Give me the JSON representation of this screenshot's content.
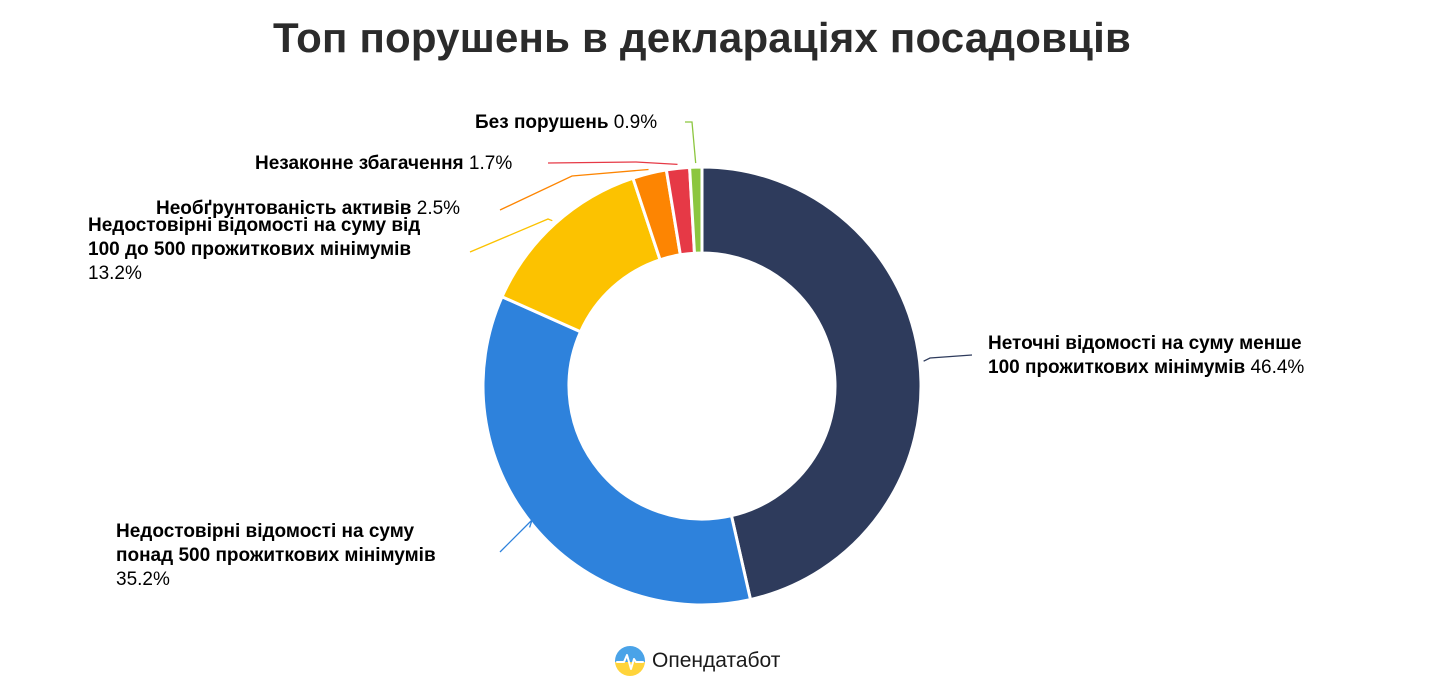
{
  "title": "Топ порушень в деклараціях посадовців",
  "brand": {
    "name": "Опендатабот",
    "logo_icon": "opendatabot-logo-icon"
  },
  "chart_data": {
    "type": "pie",
    "donut": true,
    "title": "Топ порушень в деклараціях посадовців",
    "slices": [
      {
        "label": "Неточні відомості на суму менше 100 прожиткових мінімумів",
        "label_lines": [
          "Неточні відомості на суму менше",
          "100 прожиткових мінімумів"
        ],
        "value": 46.4,
        "value_text": "46.4%",
        "color": "#2e3b5c"
      },
      {
        "label": "Недостовірні відомості на суму понад 500 прожиткових мінімумів",
        "label_lines": [
          "Недостовірні відомості на суму",
          "понад 500 прожиткових мінімумів"
        ],
        "value": 35.2,
        "value_text": "35.2%",
        "color": "#2e82dc"
      },
      {
        "label": "Недостовірні відомості на суму від 100 до 500 прожиткових мінімумів",
        "label_lines": [
          "Недостовірні відомості на суму від",
          "100 до 500 прожиткових мінімумів"
        ],
        "value": 13.2,
        "value_text": "13.2%",
        "color": "#fcc200"
      },
      {
        "label": "Необґрунтованість активів",
        "label_lines": [
          "Необґрунтованість активів"
        ],
        "value": 2.5,
        "value_text": "2.5%",
        "color": "#fd8502"
      },
      {
        "label": "Незаконне збагачення",
        "label_lines": [
          "Незаконне збагачення"
        ],
        "value": 1.7,
        "value_text": "1.7%",
        "color": "#e63946"
      },
      {
        "label": "Без порушень",
        "label_lines": [
          "Без порушень"
        ],
        "value": 0.9,
        "value_text": "0.9%",
        "color": "#8cc63f"
      }
    ]
  }
}
